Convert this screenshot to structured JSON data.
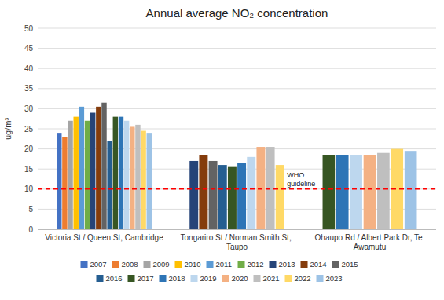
{
  "chart_data": {
    "type": "bar",
    "title": "Annual average NO₂ concentration",
    "y_label": "ug/m³",
    "categories": [
      "Victoria St / Queen St, Cambridge",
      "Tongariro St / Norman Smith St, Taupo",
      "Ohaupo Rd / Albert Park Dr, Te Awamutu"
    ],
    "series": [
      {
        "name": "2007",
        "color": "#4472C4",
        "values": [
          24.0,
          null,
          null
        ]
      },
      {
        "name": "2008",
        "color": "#ED7D31",
        "values": [
          23.0,
          null,
          null
        ]
      },
      {
        "name": "2009",
        "color": "#A5A5A5",
        "values": [
          27.0,
          null,
          null
        ]
      },
      {
        "name": "2010",
        "color": "#FFC000",
        "values": [
          28.0,
          null,
          null
        ]
      },
      {
        "name": "2011",
        "color": "#5B9BD5",
        "values": [
          30.5,
          null,
          null
        ]
      },
      {
        "name": "2012",
        "color": "#70AD47",
        "values": [
          27.0,
          null,
          null
        ]
      },
      {
        "name": "2013",
        "color": "#264478",
        "values": [
          29.0,
          17.0,
          null
        ]
      },
      {
        "name": "2014",
        "color": "#843C0C",
        "values": [
          30.5,
          18.5,
          null
        ]
      },
      {
        "name": "2015",
        "color": "#636363",
        "values": [
          31.5,
          17.0,
          null
        ]
      },
      {
        "name": "2016",
        "color": "#255E91",
        "values": [
          22.0,
          16.0,
          null
        ]
      },
      {
        "name": "2017",
        "color": "#375623",
        "values": [
          28.0,
          15.5,
          18.5
        ]
      },
      {
        "name": "2018",
        "color": "#2E75B6",
        "values": [
          28.0,
          16.5,
          18.5
        ]
      },
      {
        "name": "2019",
        "color": "#BDD7EE",
        "values": [
          27.0,
          18.0,
          18.5
        ]
      },
      {
        "name": "2020",
        "color": "#F4B183",
        "values": [
          25.5,
          20.5,
          18.5
        ]
      },
      {
        "name": "2021",
        "color": "#BFBFBF",
        "values": [
          26.0,
          20.5,
          19.0
        ]
      },
      {
        "name": "2022",
        "color": "#FFD966",
        "values": [
          24.5,
          16.0,
          20.0
        ]
      },
      {
        "name": "2023",
        "color": "#9DC3E6",
        "values": [
          24.0,
          null,
          19.5
        ]
      }
    ],
    "reference_line": {
      "value": 10,
      "label": "WHO\nguideline",
      "color": "#ff0000"
    },
    "ylim": [
      0,
      50
    ],
    "yticks": [
      0,
      5,
      10,
      15,
      20,
      25,
      30,
      35,
      40,
      45,
      50
    ],
    "grid": true,
    "legend": "bottom"
  }
}
